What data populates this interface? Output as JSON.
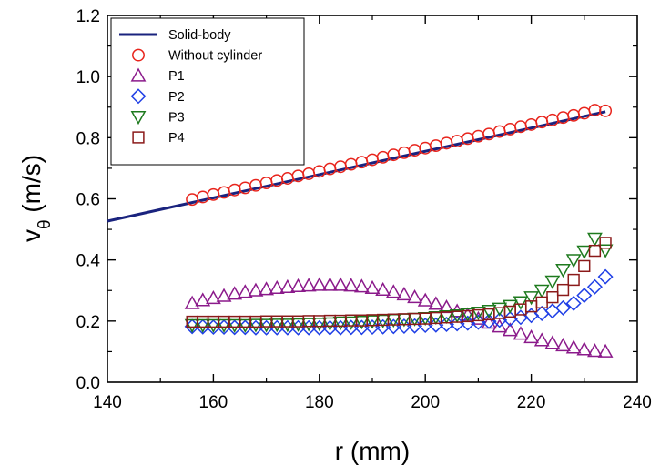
{
  "chart_data": {
    "type": "scatter",
    "xlabel": "r (mm)",
    "ylabel": "v",
    "ylabel_subscript": "θ",
    "ylabel_unit": " (m/s)",
    "xlim": [
      140,
      240
    ],
    "ylim": [
      0.0,
      1.2
    ],
    "x_ticks": [
      "140",
      "160",
      "180",
      "200",
      "220",
      "240"
    ],
    "y_ticks": [
      "0.0",
      "0.2",
      "0.4",
      "0.6",
      "0.8",
      "1.0",
      "1.2"
    ],
    "grid": false,
    "legend_position": "top-left",
    "line": {
      "name": "Solid-body",
      "color": "#1a237e",
      "points": [
        [
          140,
          0.527
        ],
        [
          234,
          0.885
        ]
      ]
    },
    "series": [
      {
        "name": "Without cylinder",
        "marker": "circle",
        "color": "#e8241c",
        "x": [
          156,
          158,
          160,
          162,
          164,
          166,
          168,
          170,
          172,
          174,
          176,
          178,
          180,
          182,
          184,
          186,
          188,
          190,
          192,
          194,
          196,
          198,
          200,
          202,
          204,
          206,
          208,
          210,
          212,
          214,
          216,
          218,
          220,
          222,
          224,
          226,
          228,
          230,
          232,
          234
        ],
        "y": [
          0.598,
          0.606,
          0.614,
          0.621,
          0.629,
          0.636,
          0.644,
          0.652,
          0.66,
          0.667,
          0.675,
          0.682,
          0.69,
          0.698,
          0.705,
          0.713,
          0.72,
          0.728,
          0.736,
          0.744,
          0.751,
          0.759,
          0.766,
          0.774,
          0.782,
          0.789,
          0.797,
          0.805,
          0.812,
          0.82,
          0.828,
          0.836,
          0.843,
          0.851,
          0.858,
          0.866,
          0.873,
          0.88,
          0.89,
          0.888
        ]
      },
      {
        "name": "P1",
        "marker": "triangle-up",
        "color": "#8b1a8b",
        "x": [
          156,
          158,
          160,
          162,
          164,
          166,
          168,
          170,
          172,
          174,
          176,
          178,
          180,
          182,
          184,
          186,
          188,
          190,
          192,
          194,
          196,
          198,
          200,
          202,
          204,
          206,
          208,
          210,
          212,
          214,
          216,
          218,
          220,
          222,
          224,
          226,
          228,
          230,
          232,
          234
        ],
        "y": [
          0.258,
          0.268,
          0.275,
          0.282,
          0.289,
          0.295,
          0.3,
          0.304,
          0.308,
          0.311,
          0.314,
          0.316,
          0.318,
          0.318,
          0.318,
          0.316,
          0.313,
          0.308,
          0.302,
          0.295,
          0.287,
          0.278,
          0.267,
          0.256,
          0.245,
          0.232,
          0.22,
          0.207,
          0.194,
          0.182,
          0.17,
          0.158,
          0.147,
          0.137,
          0.128,
          0.12,
          0.113,
          0.107,
          0.102,
          0.1
        ]
      },
      {
        "name": "P2",
        "marker": "diamond",
        "color": "#1f3fe6",
        "x": [
          156,
          158,
          160,
          162,
          164,
          166,
          168,
          170,
          172,
          174,
          176,
          178,
          180,
          182,
          184,
          186,
          188,
          190,
          192,
          194,
          196,
          198,
          200,
          202,
          204,
          206,
          208,
          210,
          212,
          214,
          216,
          218,
          220,
          222,
          224,
          226,
          228,
          230,
          232,
          234
        ],
        "y": [
          0.182,
          0.181,
          0.18,
          0.18,
          0.179,
          0.179,
          0.178,
          0.178,
          0.178,
          0.178,
          0.178,
          0.178,
          0.178,
          0.178,
          0.178,
          0.179,
          0.179,
          0.18,
          0.181,
          0.182,
          0.183,
          0.184,
          0.186,
          0.187,
          0.189,
          0.191,
          0.193,
          0.196,
          0.199,
          0.203,
          0.207,
          0.212,
          0.218,
          0.225,
          0.233,
          0.243,
          0.258,
          0.284,
          0.312,
          0.345
        ]
      },
      {
        "name": "P3",
        "marker": "triangle-down",
        "color": "#1e7a1e",
        "x": [
          156,
          158,
          160,
          162,
          164,
          166,
          168,
          170,
          172,
          174,
          176,
          178,
          180,
          182,
          184,
          186,
          188,
          190,
          192,
          194,
          196,
          198,
          200,
          202,
          204,
          206,
          208,
          210,
          212,
          214,
          216,
          218,
          220,
          222,
          224,
          226,
          228,
          230,
          232,
          234
        ],
        "y": [
          0.187,
          0.187,
          0.187,
          0.187,
          0.187,
          0.187,
          0.188,
          0.188,
          0.189,
          0.189,
          0.19,
          0.191,
          0.192,
          0.193,
          0.195,
          0.196,
          0.198,
          0.2,
          0.202,
          0.204,
          0.206,
          0.208,
          0.21,
          0.213,
          0.216,
          0.219,
          0.223,
          0.228,
          0.234,
          0.241,
          0.25,
          0.262,
          0.278,
          0.3,
          0.33,
          0.368,
          0.4,
          0.428,
          0.47,
          0.432
        ]
      },
      {
        "name": "P4",
        "marker": "square",
        "color": "#8b1a1a",
        "x": [
          156,
          158,
          160,
          162,
          164,
          166,
          168,
          170,
          172,
          174,
          176,
          178,
          180,
          182,
          184,
          186,
          188,
          190,
          192,
          194,
          196,
          198,
          200,
          202,
          204,
          206,
          208,
          210,
          212,
          214,
          216,
          218,
          220,
          222,
          224,
          226,
          228,
          230,
          232,
          234
        ],
        "y": [
          0.198,
          0.198,
          0.198,
          0.198,
          0.198,
          0.198,
          0.198,
          0.199,
          0.199,
          0.199,
          0.199,
          0.2,
          0.2,
          0.201,
          0.201,
          0.202,
          0.202,
          0.203,
          0.204,
          0.205,
          0.206,
          0.207,
          0.208,
          0.21,
          0.212,
          0.214,
          0.216,
          0.219,
          0.222,
          0.226,
          0.231,
          0.238,
          0.248,
          0.261,
          0.278,
          0.302,
          0.335,
          0.38,
          0.43,
          0.456
        ]
      }
    ]
  }
}
